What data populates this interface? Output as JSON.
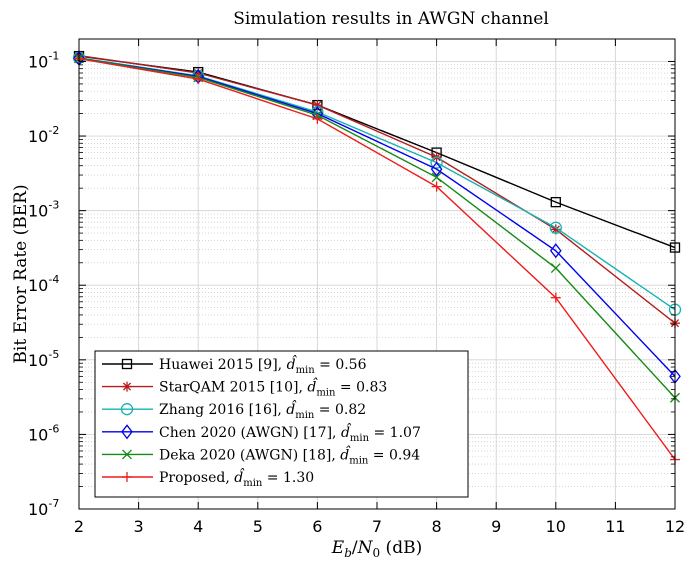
{
  "chart_data": {
    "type": "line",
    "title": "Simulation results in AWGN channel",
    "xlabel": "E_b/N_0 (dB)",
    "ylabel": "Bit Error Rate (BER)",
    "yscale": "log",
    "xlim": [
      2,
      12
    ],
    "ylim": [
      1e-07,
      0.2
    ],
    "grid": true,
    "legend_position": "bottom-left",
    "x_ticks": [
      "2",
      "3",
      "4",
      "5",
      "6",
      "7",
      "8",
      "9",
      "10",
      "11",
      "12"
    ],
    "y_ticks": [
      {
        "base": "10",
        "exp": "-1"
      },
      {
        "base": "10",
        "exp": "-2"
      },
      {
        "base": "10",
        "exp": "-3"
      },
      {
        "base": "10",
        "exp": "-4"
      },
      {
        "base": "10",
        "exp": "-5"
      },
      {
        "base": "10",
        "exp": "-6"
      },
      {
        "base": "10",
        "exp": "-7"
      }
    ],
    "x": [
      2,
      4,
      6,
      8,
      10,
      12
    ],
    "series": [
      {
        "name": "Huawei 2015 [9], d̂min = 0.56",
        "label_main": "Huawei 2015 [9], ",
        "dval": "0.56",
        "color": "#000000",
        "marker": "square",
        "values": [
          0.118,
          0.072,
          0.026,
          0.006,
          0.0013,
          0.00032
        ]
      },
      {
        "name": "StarQAM 2015 [10], d̂min = 0.83",
        "label_main": "StarQAM 2015 [10], ",
        "dval": "0.83",
        "color": "#b71c1c",
        "marker": "star",
        "values": [
          0.12,
          0.07,
          0.026,
          0.0052,
          0.00056,
          3.1e-05
        ]
      },
      {
        "name": "Zhang 2016 [16], d̂min = 0.82",
        "label_main": "Zhang 2016 [16], ",
        "dval": "0.82",
        "color": "#17b2b2",
        "marker": "circle",
        "values": [
          0.112,
          0.064,
          0.021,
          0.0044,
          0.00059,
          4.7e-05
        ]
      },
      {
        "name": "Chen 2020 (AWGN) [17], d̂min = 1.07",
        "label_main": "Chen 2020 (AWGN) [17], ",
        "dval": "1.07",
        "color": "#0000ee",
        "marker": "diamond",
        "values": [
          0.11,
          0.063,
          0.02,
          0.0036,
          0.00029,
          6e-06
        ]
      },
      {
        "name": "Deka 2020 (AWGN) [18], d̂min = 0.94",
        "label_main": "Deka 2020 (AWGN) [18], ",
        "dval": "0.94",
        "color": "#158a15",
        "marker": "x",
        "values": [
          0.11,
          0.061,
          0.019,
          0.0028,
          0.00017,
          3.1e-06
        ]
      },
      {
        "name": "Proposed, d̂min = 1.30",
        "label_main": "Proposed, ",
        "dval": "1.30",
        "color": "#ee1c1c",
        "marker": "plus",
        "values": [
          0.109,
          0.058,
          0.017,
          0.0021,
          6.8e-05,
          4.6e-07
        ]
      }
    ]
  }
}
